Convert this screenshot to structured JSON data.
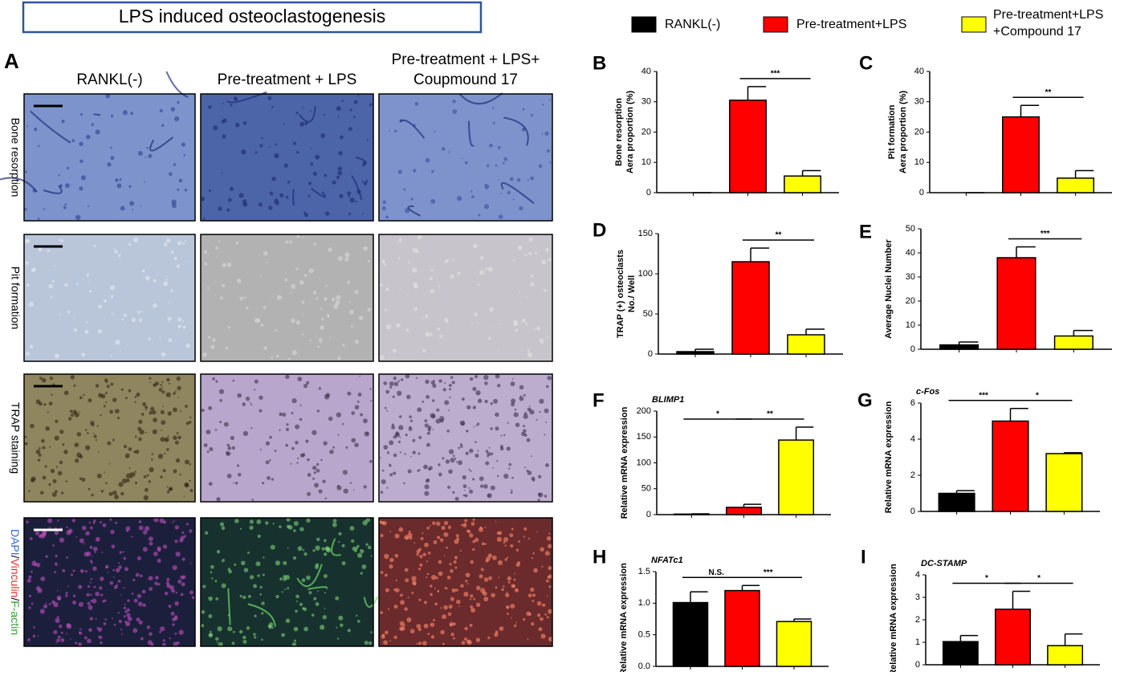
{
  "title": "LPS induced osteoclastogenesis",
  "legend": {
    "labels": [
      [
        "RANKL(-)"
      ],
      [
        "Pre-treatment+LPS"
      ],
      [
        "Pre-treatment+LPS",
        "+Compound 17"
      ]
    ],
    "colors": [
      "#000000",
      "#ff0000",
      "#ffff00"
    ]
  },
  "panel_a": {
    "label": "A",
    "columns": [
      [
        "RANKL(-)"
      ],
      [
        "Pre-treatment + LPS"
      ],
      [
        "Pre-treatment + LPS+",
        "Coupmound 17"
      ]
    ],
    "rows": [
      "Bone resorption",
      "Pit formation",
      "TRAP staining"
    ],
    "fluorescence_label": [
      "DAPI",
      "/",
      "Vinculin",
      "/",
      "F-actin"
    ],
    "fluorescence_colors": [
      "#2d6fd6",
      "#000000",
      "#e0302a",
      "#000000",
      "#2aa02a"
    ]
  },
  "chart_data": [
    {
      "type": "bar",
      "label": "B",
      "ylabel": [
        "Bone resorption",
        "Aera proportion (%)"
      ],
      "ylim": [
        0,
        40
      ],
      "yticks": [
        0,
        10,
        20,
        30,
        40
      ],
      "values": [
        0,
        30.5,
        5.5
      ],
      "errors": [
        0,
        4.5,
        1.8
      ],
      "significance": [
        {
          "from": 1,
          "to": 2,
          "label": "***"
        }
      ]
    },
    {
      "type": "bar",
      "label": "C",
      "ylabel": [
        "Pit formation",
        "Aera proportion (%)"
      ],
      "ylim": [
        0,
        40
      ],
      "yticks": [
        0,
        10,
        20,
        30,
        40
      ],
      "values": [
        0,
        25,
        4.8
      ],
      "errors": [
        0,
        3.8,
        2.5
      ],
      "significance": [
        {
          "from": 1,
          "to": 2,
          "label": "**"
        }
      ]
    },
    {
      "type": "bar",
      "label": "D",
      "ylabel": [
        "TRAP (+) osteoclasts",
        "No./ Well"
      ],
      "ylim": [
        0,
        150
      ],
      "yticks": [
        0,
        50,
        100,
        150
      ],
      "values": [
        3,
        115,
        24
      ],
      "errors": [
        3,
        17,
        7
      ],
      "significance": [
        {
          "from": 1,
          "to": 2,
          "label": "**"
        }
      ]
    },
    {
      "type": "bar",
      "label": "E",
      "ylabel": [
        "Average Nuclei Number"
      ],
      "ylim": [
        0,
        50
      ],
      "yticks": [
        0,
        10,
        20,
        30,
        40,
        50
      ],
      "values": [
        1.8,
        38,
        5.5
      ],
      "errors": [
        1.2,
        4.5,
        2.3
      ],
      "significance": [
        {
          "from": 1,
          "to": 2,
          "label": "***"
        }
      ]
    },
    {
      "type": "bar",
      "label": "F",
      "gene": "BLIMP1",
      "ylabel": [
        "Relative mRNA expression"
      ],
      "ylim": [
        0,
        200
      ],
      "yticks": [
        0,
        50,
        100,
        150,
        200
      ],
      "values": [
        1,
        14,
        144
      ],
      "errors": [
        0.5,
        6,
        25
      ],
      "significance": [
        {
          "from": 0,
          "to": 1,
          "label": "*"
        },
        {
          "from": 1,
          "to": 2,
          "label": "**"
        }
      ]
    },
    {
      "type": "bar",
      "label": "G",
      "gene": "c-Fos",
      "ylabel": [
        "Relative mRNA expression"
      ],
      "ylim": [
        0,
        6
      ],
      "yticks": [
        0,
        2,
        4,
        6
      ],
      "values": [
        1,
        5,
        3.2
      ],
      "errors": [
        0.15,
        0.7,
        0.05
      ],
      "significance": [
        {
          "from": 0,
          "to": 1,
          "label": "***"
        },
        {
          "from": 1,
          "to": 2,
          "label": "*"
        }
      ]
    },
    {
      "type": "bar",
      "label": "H",
      "gene": "NFATc1",
      "ylabel": [
        "Relative mRNA expression"
      ],
      "ylim": [
        0,
        1.5
      ],
      "yticks": [
        {
          "value": 0,
          "label": "0.0"
        },
        0.5,
        {
          "value": 1,
          "label": "1.0"
        },
        1.5
      ],
      "values": [
        1.01,
        1.2,
        0.71
      ],
      "errors": [
        0.17,
        0.08,
        0.04
      ],
      "significance": [
        {
          "from": 0,
          "to": 1,
          "label": "N.S."
        },
        {
          "from": 1,
          "to": 2,
          "label": "***"
        }
      ]
    },
    {
      "type": "bar",
      "label": "I",
      "gene": "DC-STAMP",
      "ylabel": [
        "Relative mRNA expression"
      ],
      "ylim": [
        0,
        4
      ],
      "yticks": [
        0,
        1,
        2,
        3,
        4
      ],
      "values": [
        1.03,
        2.47,
        0.85
      ],
      "errors": [
        0.27,
        0.8,
        0.52
      ],
      "significance": [
        {
          "from": 0,
          "to": 1,
          "label": "*"
        },
        {
          "from": 1,
          "to": 2,
          "label": "*"
        }
      ]
    }
  ]
}
